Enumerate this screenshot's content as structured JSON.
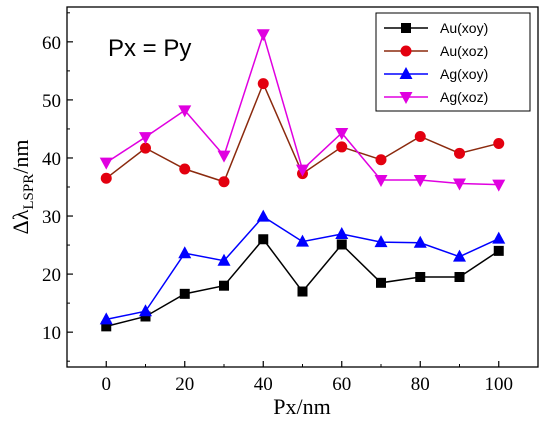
{
  "chart_data": {
    "type": "line",
    "title": "",
    "annotation": "Px = Py",
    "xlabel": "Px/nm",
    "ylabel_parts": {
      "main": "Δλ",
      "sub": "LSPR",
      "tail": "/nm"
    },
    "xlim": [
      -10,
      110
    ],
    "ylim": [
      4,
      66
    ],
    "xticks": [
      0,
      20,
      40,
      60,
      80,
      100
    ],
    "yticks": [
      10,
      20,
      30,
      40,
      50,
      60
    ],
    "x": [
      0,
      10,
      20,
      30,
      40,
      50,
      60,
      70,
      80,
      90,
      100
    ],
    "legend_position": "top-right",
    "grid": false,
    "series": [
      {
        "name": "Au(xoy)",
        "color": "#000000",
        "marker": "square",
        "values": [
          11.0,
          12.7,
          16.6,
          18.0,
          26.0,
          17.0,
          25.1,
          18.5,
          19.5,
          19.5,
          24.0
        ]
      },
      {
        "name": "Au(xoz)",
        "color": "#e3000f",
        "line_color": "#8b2a0e",
        "marker": "circle",
        "values": [
          36.5,
          41.7,
          38.1,
          35.9,
          52.8,
          37.3,
          41.9,
          39.7,
          43.7,
          40.8,
          42.5
        ]
      },
      {
        "name": "Ag(xoy)",
        "color": "#0000ff",
        "marker": "triangle-up",
        "values": [
          12.2,
          13.6,
          23.6,
          22.3,
          29.9,
          25.6,
          26.9,
          25.5,
          25.4,
          23.0,
          26.1
        ]
      },
      {
        "name": "Ag(xoz)",
        "color": "#e000e0",
        "marker": "triangle-down",
        "values": [
          39.2,
          43.6,
          48.2,
          40.4,
          61.3,
          38.0,
          44.3,
          36.2,
          36.2,
          35.6,
          35.4
        ]
      }
    ]
  }
}
